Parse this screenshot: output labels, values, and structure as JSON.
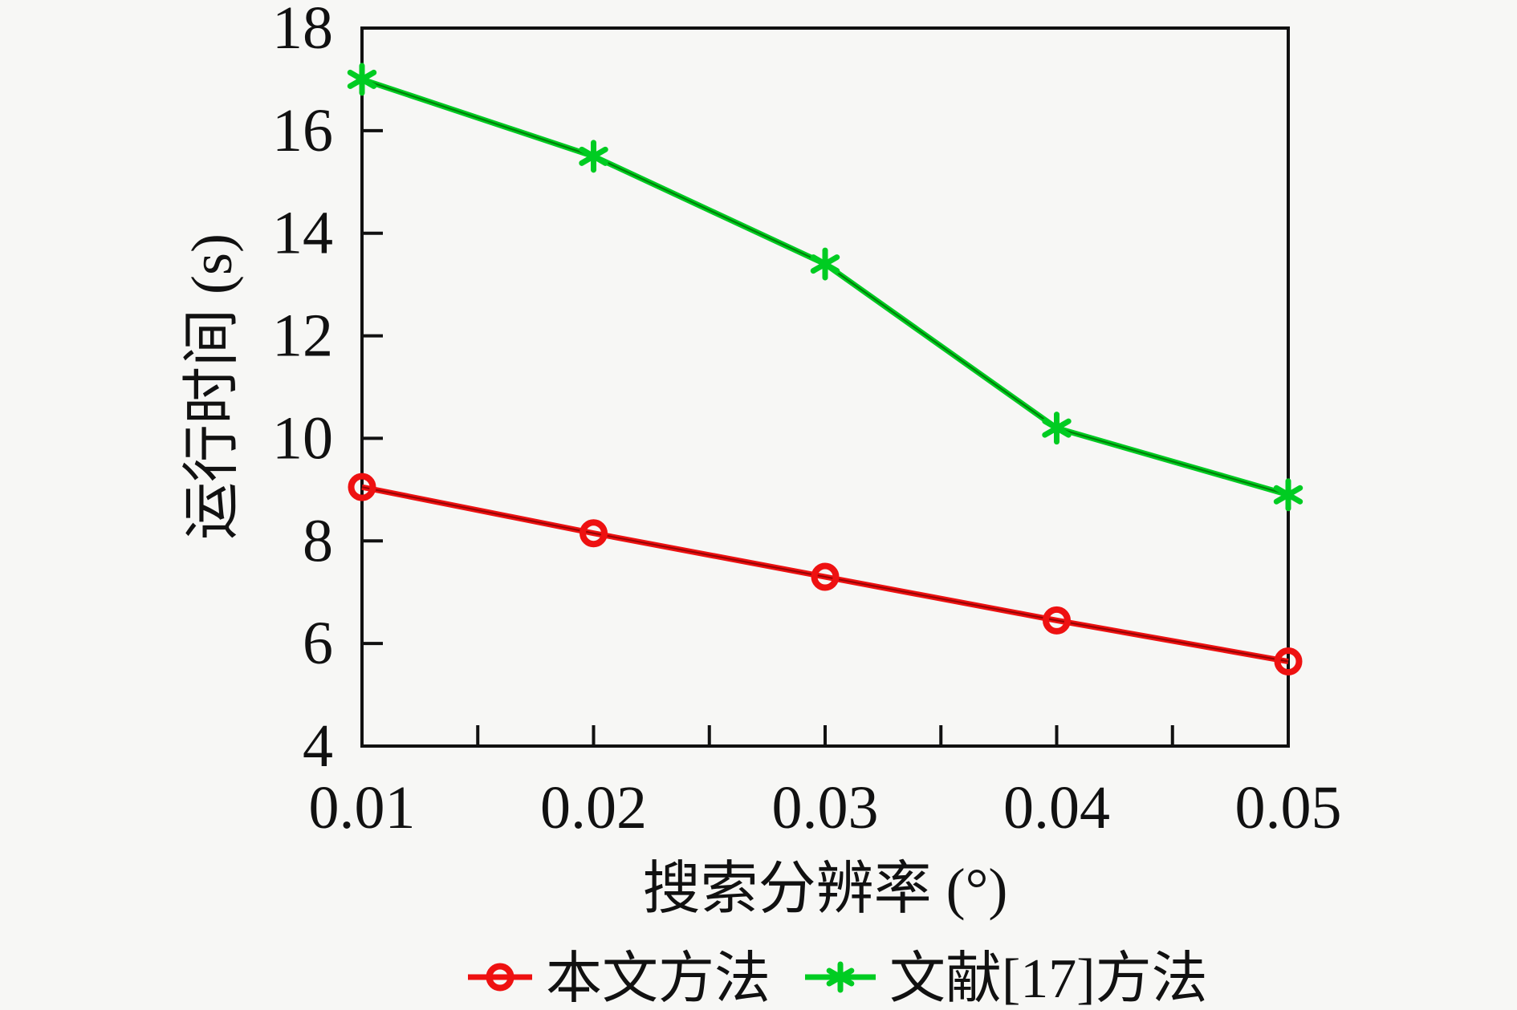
{
  "figure": {
    "background_color": "#f7f7f5",
    "axis_color": "#111111",
    "text_color": "#111111"
  },
  "chart_data": {
    "type": "line",
    "title": "",
    "xlabel": "搜索分辨率 (°)",
    "ylabel": "运行时间 (s)",
    "x": [
      0.01,
      0.02,
      0.03,
      0.04,
      0.05
    ],
    "x_tick_labels": [
      "0.01",
      "0.02",
      "0.03",
      "0.04",
      "0.05"
    ],
    "x_axis_minor_ticks": [
      0.015,
      0.02,
      0.025,
      0.03,
      0.035,
      0.04,
      0.045
    ],
    "xlim": [
      0.01,
      0.05
    ],
    "ylim": [
      4,
      18
    ],
    "y_ticks": [
      4,
      6,
      8,
      10,
      12,
      14,
      16,
      18
    ],
    "y_tick_labels": [
      "4",
      "6",
      "8",
      "10",
      "12",
      "14",
      "16",
      "18"
    ],
    "grid": false,
    "legend_position": "bottom-center",
    "series": [
      {
        "name": "本文方法",
        "marker": "open-circle",
        "color": "#ee1111",
        "core_color": "#7a0000",
        "values": [
          9.05,
          8.15,
          7.3,
          6.45,
          5.65
        ]
      },
      {
        "name": "文献[17]方法",
        "marker": "asterisk",
        "color": "#00cc22",
        "core_color": "#006600",
        "values": [
          17.0,
          15.5,
          13.4,
          10.2,
          8.9
        ]
      }
    ]
  }
}
